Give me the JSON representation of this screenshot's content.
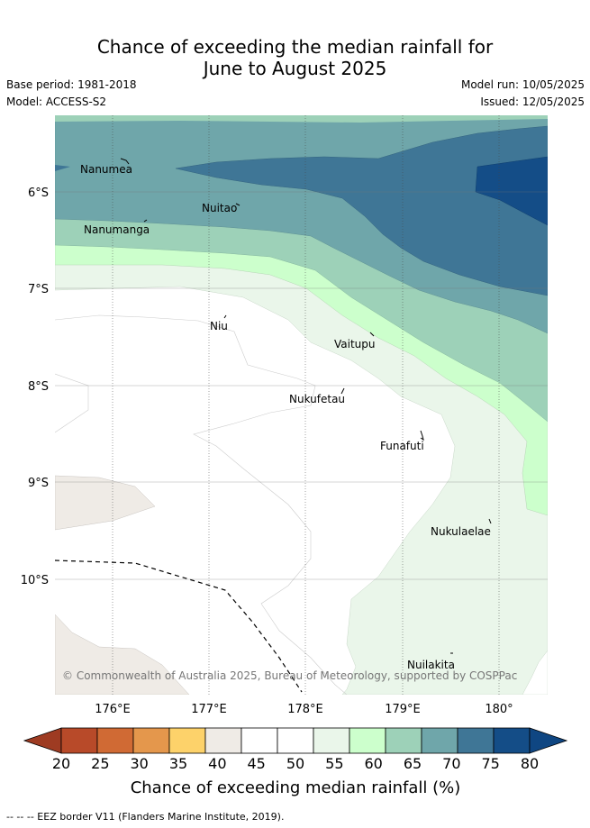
{
  "title_line1": "Chance of exceeding the median rainfall for",
  "title_line2": "June to August 2025",
  "base_period": "Base period: 1981-2018",
  "model": "Model: ACCESS-S2",
  "model_run": "Model run: 10/05/2025",
  "issued": "Issued: 12/05/2025",
  "islands": [
    "Nanumea",
    "Nuitao",
    "Nanumanga",
    "Niu",
    "Vaitupu",
    "Nukufetau",
    "Funafuti",
    "Nukulaelae",
    "Nuilakita"
  ],
  "lat_labels": [
    "6°S",
    "7°S",
    "8°S",
    "9°S",
    "10°S"
  ],
  "lon_labels": [
    "176°E",
    "177°E",
    "178°E",
    "179°E",
    "180°"
  ],
  "copyright": "© Commonwealth of Australia 2025, Bureau of Meteorology, supported by COSPPac",
  "colorbar": {
    "ticks": [
      "20",
      "25",
      "30",
      "35",
      "40",
      "45",
      "50",
      "55",
      "60",
      "65",
      "70",
      "75",
      "80"
    ],
    "colors": [
      "#b84a29",
      "#d06a34",
      "#e4974c",
      "#fdd26a",
      "#efebe6",
      "#ffffff",
      "#ffffff",
      "#eaf6ea",
      "#ccffcc",
      "#9dd1b8",
      "#6fa6aa",
      "#3f7696",
      "#144d87"
    ],
    "under_color": "#9e3b22",
    "over_color": "#0f4682",
    "label": "Chance of exceeding median rainfall (%)"
  },
  "eez_note": "-- -- -- EEZ border V11 (Flanders Marine Institute, 2019)."
}
